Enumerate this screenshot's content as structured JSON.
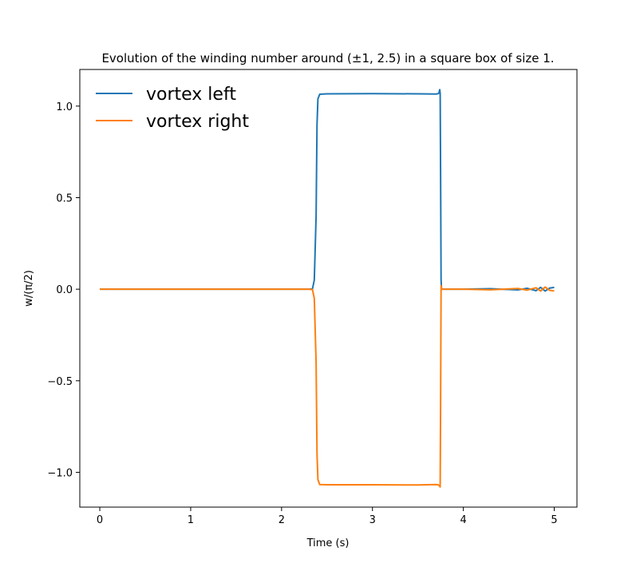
{
  "chart_data": {
    "type": "line",
    "title": "Evolution of the winding number around (±1, 2.5) in a square box of size 1.",
    "xlabel": "Time (s)",
    "ylabel": "w/(π/2)",
    "xlim": [
      -0.22,
      5.25
    ],
    "ylim": [
      -1.19,
      1.2
    ],
    "xticks": [
      0,
      1,
      2,
      3,
      4,
      5
    ],
    "xtick_labels": [
      "0",
      "1",
      "2",
      "3",
      "4",
      "5"
    ],
    "yticks": [
      -1.0,
      -0.5,
      0.0,
      0.5,
      1.0
    ],
    "ytick_labels": [
      "−1.0",
      "−0.5",
      "0.0",
      "0.5",
      "1.0"
    ],
    "grid": false,
    "legend_position": "upper-left",
    "series": [
      {
        "name": "vortex left",
        "color": "#1f77b4",
        "x": [
          0,
          1,
          2,
          2.3,
          2.34,
          2.36,
          2.38,
          2.39,
          2.4,
          2.42,
          2.5,
          3.0,
          3.5,
          3.7,
          3.72,
          3.73,
          3.74,
          3.745,
          3.75,
          3.755,
          3.76,
          3.8,
          4.0,
          4.3,
          4.6,
          4.7,
          4.8,
          4.85,
          4.9,
          4.95,
          5.0
        ],
        "y": [
          0,
          0,
          0,
          0,
          0.002,
          0.05,
          0.4,
          0.9,
          1.04,
          1.065,
          1.067,
          1.068,
          1.067,
          1.066,
          1.068,
          1.07,
          1.09,
          1.07,
          0.6,
          0.05,
          0.0,
          0.0,
          0.0,
          0.003,
          -0.004,
          0.005,
          -0.008,
          0.01,
          -0.01,
          0.006,
          0.01
        ]
      },
      {
        "name": "vortex right",
        "color": "#ff7f0e",
        "x": [
          0,
          1,
          2,
          2.3,
          2.34,
          2.36,
          2.38,
          2.39,
          2.4,
          2.42,
          2.5,
          3.0,
          3.5,
          3.7,
          3.72,
          3.73,
          3.74,
          3.745,
          3.75,
          3.755,
          3.76,
          3.8,
          4.0,
          4.3,
          4.6,
          4.7,
          4.8,
          4.85,
          4.9,
          4.95,
          5.0
        ],
        "y": [
          0,
          0,
          0,
          0,
          -0.002,
          -0.05,
          -0.4,
          -0.9,
          -1.04,
          -1.067,
          -1.068,
          -1.068,
          -1.069,
          -1.067,
          -1.068,
          -1.07,
          -1.075,
          -1.08,
          -0.6,
          0.02,
          0.0,
          0.0,
          0.0,
          -0.003,
          0.004,
          -0.005,
          0.008,
          -0.01,
          0.012,
          -0.006,
          -0.01
        ]
      }
    ]
  }
}
